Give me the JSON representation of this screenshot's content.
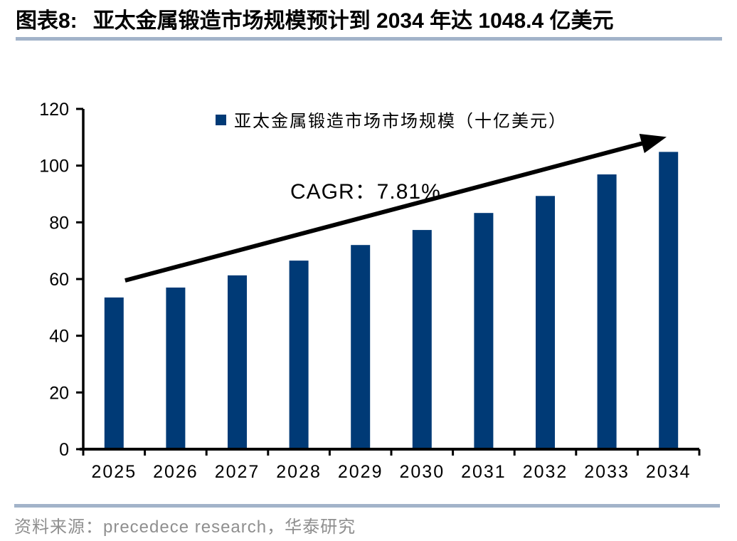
{
  "header": {
    "tag": "图表8:",
    "title": "亚太金属锻造市场规模预计到 2034 年达 1048.4 亿美元"
  },
  "chart_data": {
    "type": "bar",
    "title": "亚太金属锻造市场规模预计到 2034 年达 1048.4 亿美元",
    "legend": "亚太金属锻造市场市场规模（十亿美元）",
    "legend_position": "top-center",
    "annotation": "CAGR：7.81%",
    "categories": [
      "2025",
      "2026",
      "2027",
      "2028",
      "2029",
      "2030",
      "2031",
      "2032",
      "2033",
      "2034"
    ],
    "values": [
      53.5,
      57.0,
      61.3,
      66.5,
      72.0,
      77.3,
      83.3,
      89.3,
      96.9,
      104.84
    ],
    "xlabel": "",
    "ylabel": "",
    "ylim": [
      0,
      120
    ],
    "yticks": [
      0,
      20,
      40,
      60,
      80,
      100,
      120
    ],
    "grid": false,
    "bar_color": "#003A76",
    "trend_arrow": {
      "from": {
        "category_index": 0.18,
        "value": 59.5
      },
      "to": {
        "category_index": 8.6,
        "value": 108
      },
      "color": "#000000"
    }
  },
  "footer": {
    "source": "资料来源：precedece research，华泰研究"
  },
  "colors": {
    "accent_rule": "#A2B3C9",
    "bar": "#003A76",
    "axis": "#000000",
    "footer_text": "#8F8F8F"
  }
}
